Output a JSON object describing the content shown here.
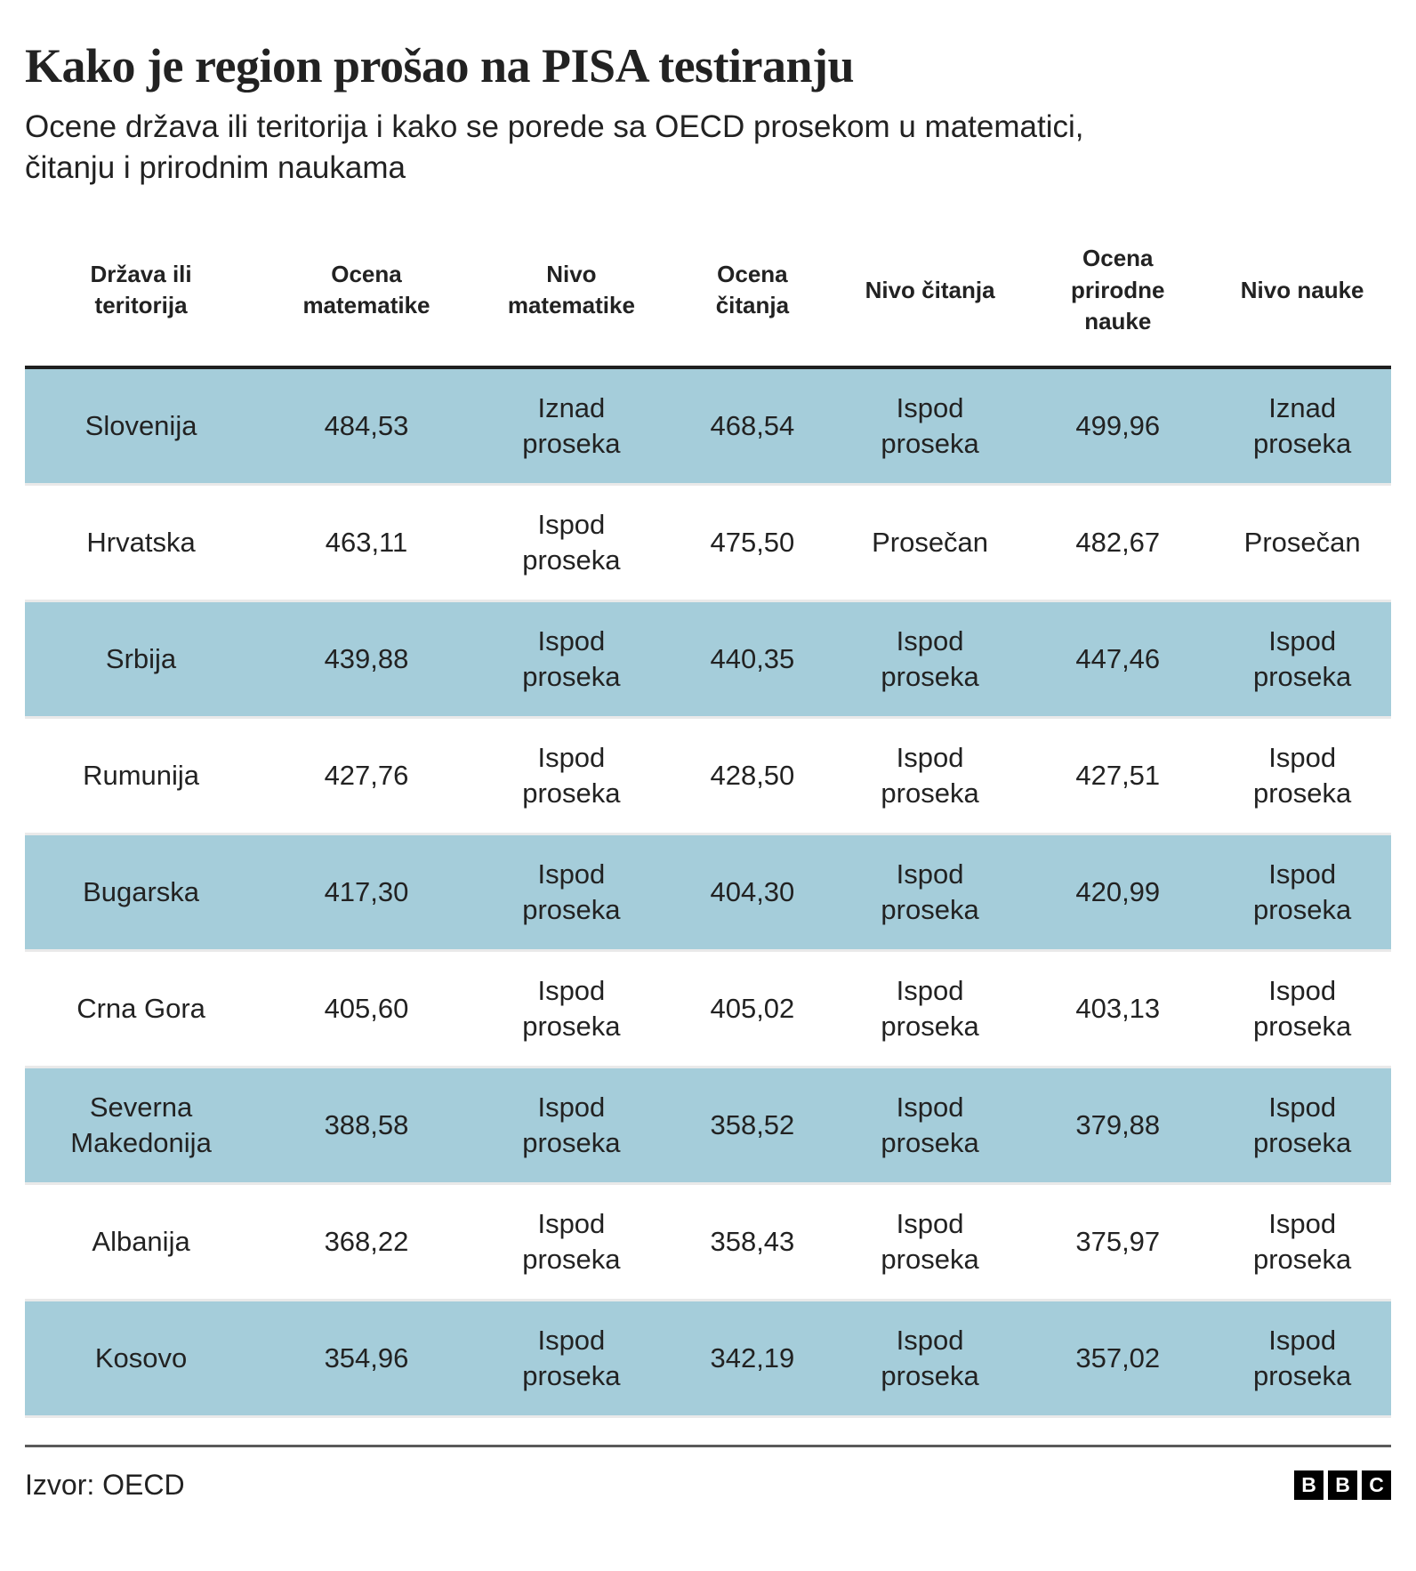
{
  "title": "Kako je region prošao na PISA testiranju",
  "subtitle": "Ocene država ili teritorija i kako se porede sa OECD prosekom u matematici, čitanju i prirodnim naukama",
  "chart_data": {
    "type": "table",
    "title": "Kako je region prošao na PISA testiranju",
    "subtitle": "Ocene država ili teritorija i kako se porede sa OECD prosekom u matematici, čitanju i prirodnim naukama",
    "columns": [
      "Država ili teritorija",
      "Ocena matematike",
      "Nivo matematike",
      "Ocena čitanja",
      "Nivo čitanja",
      "Ocena prirodne nauke",
      "Nivo nauke"
    ],
    "rows": [
      [
        "Slovenija",
        "484,53",
        "Iznad proseka",
        "468,54",
        "Ispod proseka",
        "499,96",
        "Iznad proseka"
      ],
      [
        "Hrvatska",
        "463,11",
        "Ispod proseka",
        "475,50",
        "Prosečan",
        "482,67",
        "Prosečan"
      ],
      [
        "Srbija",
        "439,88",
        "Ispod proseka",
        "440,35",
        "Ispod proseka",
        "447,46",
        "Ispod proseka"
      ],
      [
        "Rumunija",
        "427,76",
        "Ispod proseka",
        "428,50",
        "Ispod proseka",
        "427,51",
        "Ispod proseka"
      ],
      [
        "Bugarska",
        "417,30",
        "Ispod proseka",
        "404,30",
        "Ispod proseka",
        "420,99",
        "Ispod proseka"
      ],
      [
        "Crna Gora",
        "405,60",
        "Ispod proseka",
        "405,02",
        "Ispod proseka",
        "403,13",
        "Ispod proseka"
      ],
      [
        "Severna Makedonija",
        "388,58",
        "Ispod proseka",
        "358,52",
        "Ispod proseka",
        "379,88",
        "Ispod proseka"
      ],
      [
        "Albanija",
        "368,22",
        "Ispod proseka",
        "358,43",
        "Ispod proseka",
        "375,97",
        "Ispod proseka"
      ],
      [
        "Kosovo",
        "354,96",
        "Ispod proseka",
        "342,19",
        "Ispod proseka",
        "357,02",
        "Ispod proseka"
      ]
    ],
    "highlighted_rows": [
      "Slovenija",
      "Srbija",
      "Bugarska",
      "Severna Makedonija",
      "Kosovo"
    ],
    "source": "Izvor: OECD"
  },
  "footer": {
    "source": "Izvor: OECD",
    "logo_letters": [
      "B",
      "B",
      "C"
    ]
  },
  "colors": {
    "row_highlight": "#a5cdda",
    "table_top_border": "#1f1f1f",
    "row_divider": "#e9e9e9",
    "footer_divider": "#5a5a5a",
    "text_main": "#222222",
    "logo_bg": "#000000"
  }
}
